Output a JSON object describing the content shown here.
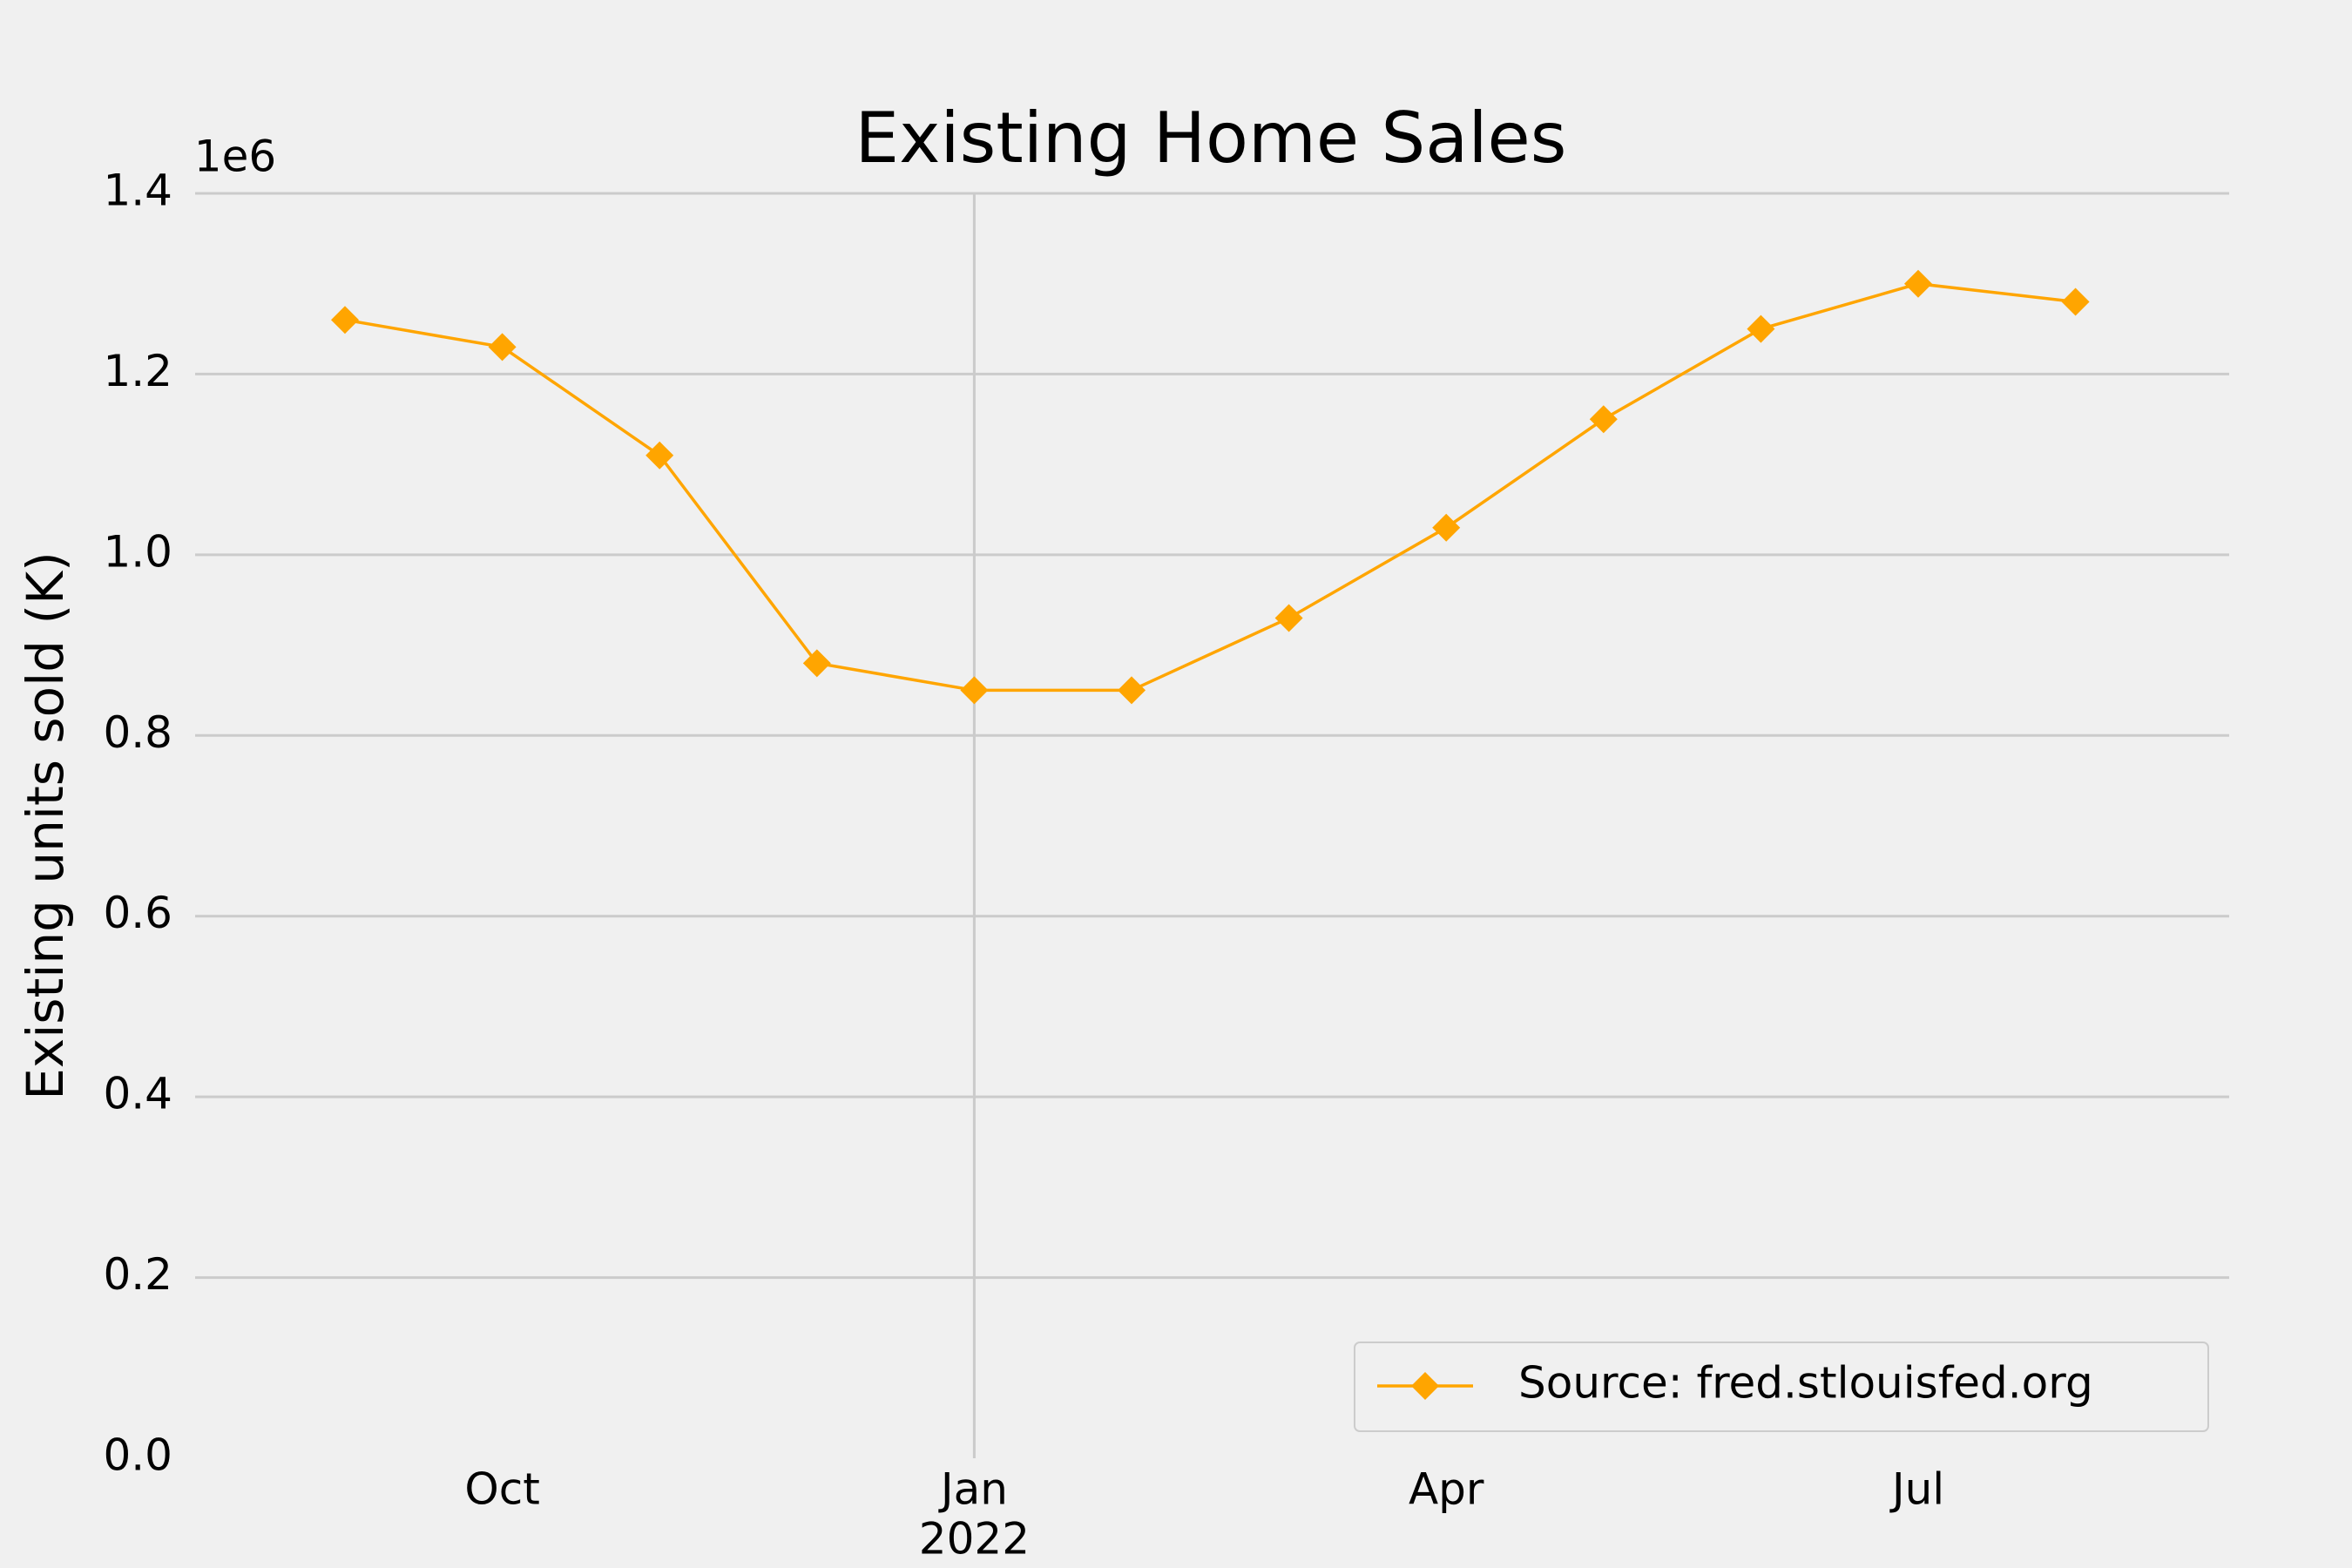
{
  "chart_data": {
    "type": "line",
    "title": "Existing Home Sales",
    "y_label": "Existing units sold (K)",
    "y_offset_label": "1e6",
    "categories": [
      null,
      "Oct",
      null,
      null,
      "Jan",
      null,
      null,
      "Apr",
      null,
      null,
      "Jul",
      null
    ],
    "category_sublabels": [
      null,
      null,
      null,
      null,
      "2022",
      null,
      null,
      null,
      null,
      null,
      null,
      null
    ],
    "series": [
      {
        "name": "Source: fred.stlouisfed.org",
        "color": "#ffa500",
        "values": [
          1260000,
          1230000,
          1110000,
          880000,
          850000,
          850000,
          930000,
          1030000,
          1150000,
          1250000,
          1300000,
          1280000
        ]
      }
    ],
    "ylim": [
      0,
      1400000
    ],
    "yticks": [
      {
        "value": 0,
        "label": "0.0"
      },
      {
        "value": 200000,
        "label": "0.2"
      },
      {
        "value": 400000,
        "label": "0.4"
      },
      {
        "value": 600000,
        "label": "0.6"
      },
      {
        "value": 800000,
        "label": "0.8"
      },
      {
        "value": 1000000,
        "label": "1.0"
      },
      {
        "value": 1200000,
        "label": "1.2"
      },
      {
        "value": 1400000,
        "label": "1.4"
      }
    ],
    "grid": true,
    "legend": "lower right"
  }
}
